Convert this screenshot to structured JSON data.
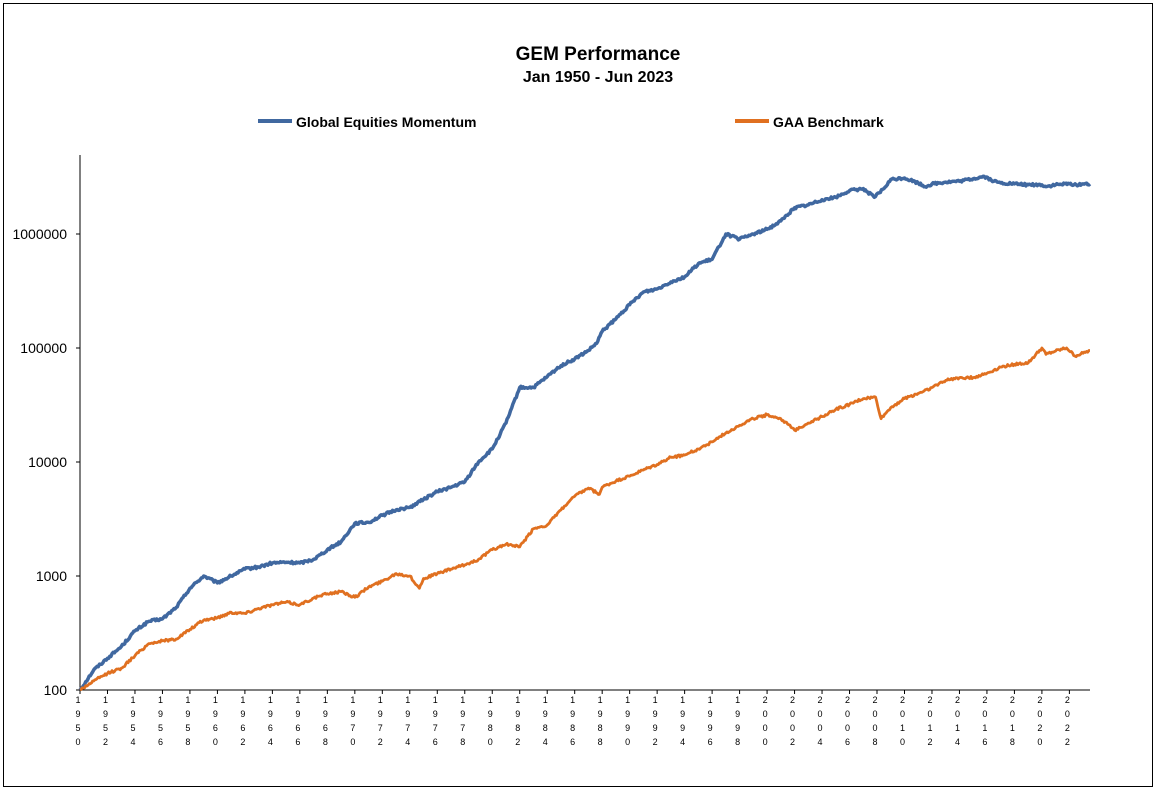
{
  "chart_data": {
    "type": "line",
    "title": "GEM Performance",
    "subtitle": "Jan 1950 - Jun 2023",
    "xlabel": "",
    "ylabel": "",
    "y_scale": "log",
    "ylim": [
      100,
      5000000
    ],
    "yticks": [
      "100",
      "1000",
      "10000",
      "100000",
      "1000000"
    ],
    "ytick_values": [
      100,
      1000,
      10000,
      100000,
      1000000
    ],
    "xticks": [
      "1950",
      "1952",
      "1954",
      "1956",
      "1958",
      "1960",
      "1962",
      "1964",
      "1966",
      "1968",
      "1970",
      "1972",
      "1974",
      "1976",
      "1978",
      "1980",
      "1982",
      "1984",
      "1986",
      "1988",
      "1990",
      "1992",
      "1994",
      "1996",
      "1998",
      "2000",
      "2002",
      "2004",
      "2006",
      "2008",
      "2010",
      "2012",
      "2014",
      "2016",
      "2018",
      "2020",
      "2022"
    ],
    "xlim": [
      1950.0,
      2023.5
    ],
    "legend_position": "top",
    "grid": false,
    "series": [
      {
        "name": "Global Equities Momentum",
        "color": "#4068A0",
        "x": [
          1950.0,
          1951.0,
          1952.0,
          1953.0,
          1954.0,
          1955.0,
          1956.0,
          1957.0,
          1958.0,
          1959.0,
          1960.0,
          1961.0,
          1962.0,
          1963.0,
          1964.0,
          1965.0,
          1966.0,
          1967.0,
          1968.0,
          1969.0,
          1970.0,
          1971.0,
          1972.0,
          1973.0,
          1974.0,
          1975.0,
          1976.0,
          1977.0,
          1978.0,
          1979.0,
          1980.0,
          1981.0,
          1982.0,
          1983.0,
          1984.0,
          1985.0,
          1986.0,
          1987.0,
          1987.6,
          1988.0,
          1989.0,
          1990.0,
          1991.0,
          1992.0,
          1993.0,
          1994.0,
          1995.0,
          1996.0,
          1997.0,
          1998.0,
          1999.0,
          2000.0,
          2001.0,
          2002.0,
          2003.0,
          2004.0,
          2005.0,
          2006.0,
          2007.0,
          2007.8,
          2008.5,
          2009.0,
          2010.0,
          2011.0,
          2011.5,
          2012.0,
          2013.0,
          2014.0,
          2015.0,
          2015.8,
          2016.5,
          2017.0,
          2018.0,
          2019.0,
          2020.0,
          2020.3,
          2021.0,
          2022.0,
          2022.5,
          2023.0,
          2023.5
        ],
        "values": [
          100,
          150,
          190,
          240,
          330,
          400,
          420,
          530,
          780,
          1000,
          870,
          1000,
          1150,
          1200,
          1300,
          1320,
          1300,
          1400,
          1700,
          2000,
          2900,
          2950,
          3400,
          3800,
          4000,
          4700,
          5500,
          6000,
          6700,
          10000,
          13000,
          22000,
          45000,
          45000,
          56000,
          70000,
          80000,
          95000,
          110000,
          140000,
          180000,
          240000,
          310000,
          330000,
          380000,
          420000,
          550000,
          600000,
          1000000,
          900000,
          1000000,
          1100000,
          1300000,
          1700000,
          1800000,
          2000000,
          2100000,
          2400000,
          2500000,
          2100000,
          2500000,
          3000000,
          3100000,
          2800000,
          2600000,
          2750000,
          2850000,
          2900000,
          3050000,
          3200000,
          2900000,
          2800000,
          2750000,
          2700000,
          2700000,
          2600000,
          2700000,
          2750000,
          2700000,
          2750000,
          2750000
        ]
      },
      {
        "name": "GAA Benchmark",
        "color": "#E07020",
        "x": [
          1950.0,
          1951.0,
          1952.0,
          1953.0,
          1954.0,
          1955.0,
          1956.0,
          1957.0,
          1958.0,
          1959.0,
          1960.0,
          1961.0,
          1962.0,
          1963.0,
          1964.0,
          1965.0,
          1966.0,
          1967.0,
          1968.0,
          1969.0,
          1970.0,
          1971.0,
          1972.0,
          1973.0,
          1974.0,
          1974.7,
          1975.0,
          1976.0,
          1977.0,
          1978.0,
          1979.0,
          1980.0,
          1981.0,
          1982.0,
          1983.0,
          1984.0,
          1985.0,
          1986.0,
          1987.0,
          1987.8,
          1988.0,
          1989.0,
          1990.0,
          1991.0,
          1992.0,
          1993.0,
          1994.0,
          1995.0,
          1996.0,
          1997.0,
          1998.0,
          1999.0,
          2000.0,
          2001.0,
          2002.0,
          2003.0,
          2004.0,
          2005.0,
          2006.0,
          2007.0,
          2007.9,
          2008.3,
          2009.0,
          2010.0,
          2011.0,
          2012.0,
          2013.0,
          2014.0,
          2015.0,
          2016.0,
          2017.0,
          2018.0,
          2019.0,
          2020.0,
          2020.3,
          2021.0,
          2021.8,
          2022.4,
          2023.0,
          2023.5
        ],
        "values": [
          100,
          120,
          140,
          155,
          200,
          255,
          270,
          280,
          340,
          410,
          430,
          480,
          470,
          520,
          560,
          590,
          560,
          640,
          700,
          730,
          650,
          800,
          900,
          1050,
          1000,
          780,
          950,
          1050,
          1150,
          1250,
          1400,
          1700,
          1900,
          1800,
          2600,
          2800,
          3800,
          5000,
          5900,
          5200,
          6000,
          6800,
          7500,
          8500,
          9500,
          11000,
          11500,
          13000,
          15000,
          18000,
          21000,
          24000,
          26000,
          24000,
          19000,
          22000,
          25000,
          29000,
          32000,
          36000,
          37000,
          24000,
          30000,
          36000,
          40000,
          45000,
          52000,
          55000,
          55000,
          60000,
          68000,
          72000,
          74000,
          100000,
          88000,
          94000,
          100000,
          85000,
          90000,
          95000
        ]
      }
    ]
  }
}
